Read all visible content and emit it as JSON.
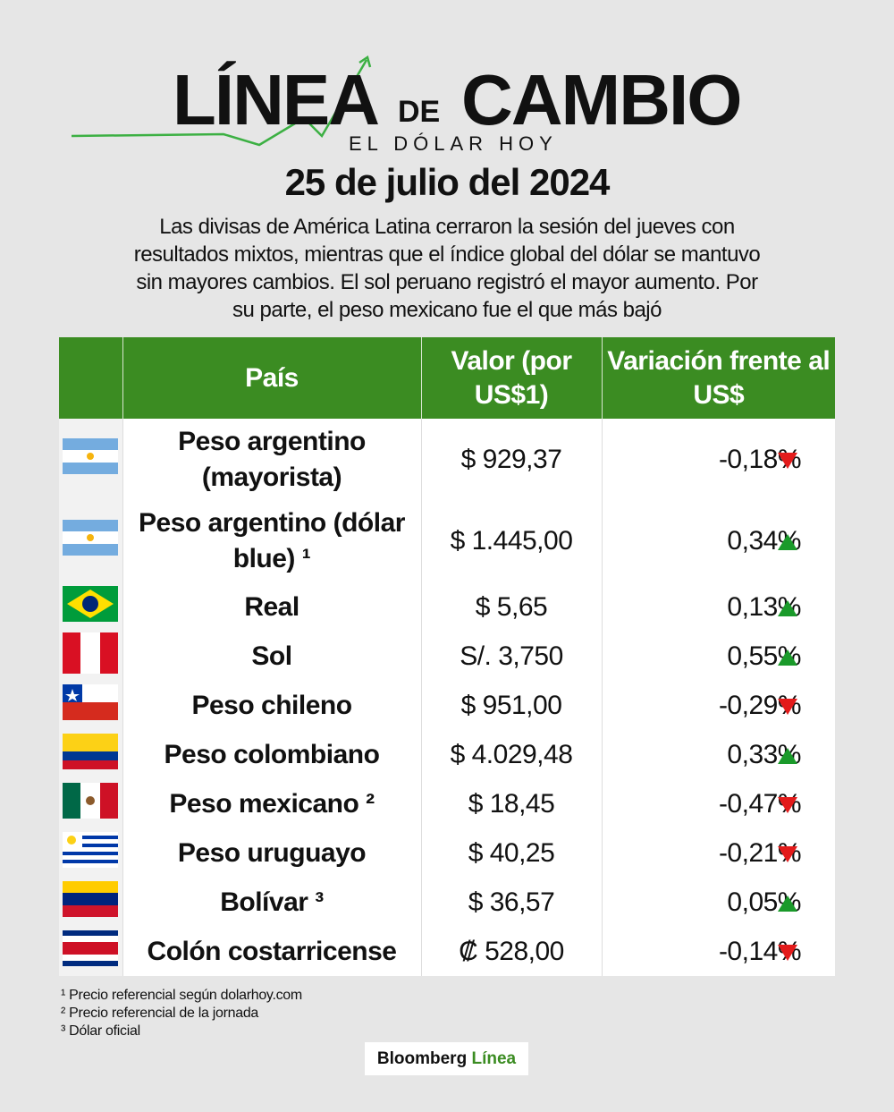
{
  "header": {
    "title_1": "LÍNEA",
    "title_2": "DE",
    "title_3": "CAMBIO",
    "subtitle": "EL DÓLAR HOY"
  },
  "date": "25 de julio del 2024",
  "intro": "Las divisas de América Latina cerraron la sesión del jueves con resultados mixtos, mientras que el índice global del dólar se mantuvo sin mayores cambios. El sol peruano registró el mayor aumento. Por su parte, el peso mexicano fue el que más bajó",
  "table": {
    "columns": [
      "País",
      "Valor (por US$1)",
      "Variación frente al US$"
    ],
    "rows": [
      [
        "Peso argentino (mayorista)",
        "$ 929,37",
        "-0,18%"
      ],
      [
        "Peso argentino (dólar blue) ¹",
        "$ 1.445,00",
        "0,34%"
      ],
      [
        "Real",
        "$ 5,65",
        "0,13%"
      ],
      [
        "Sol",
        "S/. 3,750",
        "0,55%"
      ],
      [
        "Peso chileno",
        "$ 951,00",
        "-0,29%"
      ],
      [
        "Peso colombiano",
        "$ 4.029,48",
        "0,33%"
      ],
      [
        "Peso mexicano ²",
        "$ 18,45",
        "-0,47%"
      ],
      [
        "Peso uruguayo",
        "$ 40,25",
        "-0,21%"
      ],
      [
        "Bolívar ³",
        "$ 36,57",
        "0,05%"
      ],
      [
        "Colón costarricense",
        "₡ 528,00",
        "-0,14%"
      ]
    ]
  },
  "footnotes": [
    "¹ Precio referencial según dolarhoy.com",
    "² Precio referencial de la jornada",
    "³ Dólar oficial"
  ],
  "brand": {
    "name_1": "Bloomberg",
    "name_2": "Línea"
  }
}
